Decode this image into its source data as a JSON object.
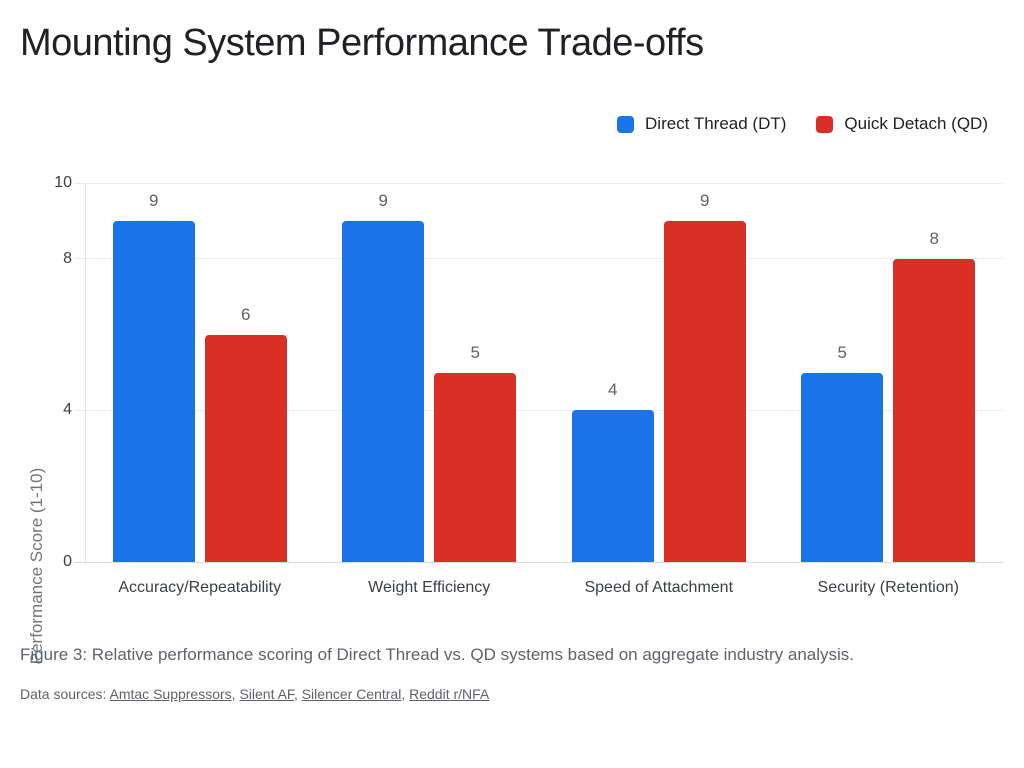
{
  "title": "Mounting System Performance Trade-offs",
  "caption": "Figure 3: Relative performance scoring of Direct Thread vs. QD systems based on aggregate industry analysis.",
  "sources": {
    "prefix": "Data sources: ",
    "separator": ", ",
    "links": [
      "Amtac Suppressors",
      "Silent AF",
      "Silencer Central",
      "Reddit r/NFA"
    ]
  },
  "colors": {
    "direct_thread": "#1a73e8",
    "quick_detach": "#d93025"
  },
  "chart_data": {
    "type": "bar",
    "title": "Mounting System Performance Trade-offs",
    "categories": [
      "Accuracy/Repeatability",
      "Weight Efficiency",
      "Speed of Attachment",
      "Security (Retention)"
    ],
    "series": [
      {
        "name": "Direct Thread (DT)",
        "color": "#1a73e8",
        "values": [
          9,
          9,
          4,
          5
        ]
      },
      {
        "name": "Quick Detach (QD)",
        "color": "#d93025",
        "values": [
          6,
          5,
          9,
          8
        ]
      }
    ],
    "xlabel": "",
    "ylabel": "Performance Score (1-10)",
    "ylim": [
      0,
      10
    ],
    "yticks": [
      0,
      4,
      8,
      10
    ],
    "grid": true,
    "value_labels": true,
    "legend_position": "top-right"
  }
}
